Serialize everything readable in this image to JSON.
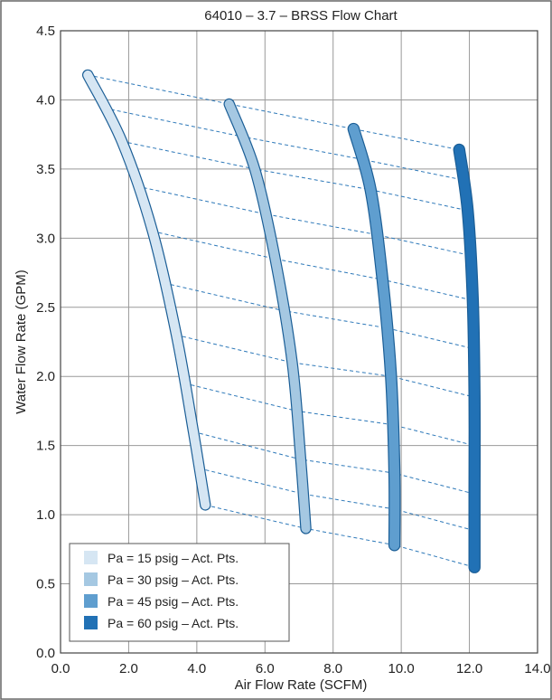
{
  "chart_data": {
    "type": "line",
    "title": "64010 – 3.7 – BRSS Flow Chart",
    "xlabel": "Air Flow Rate (SCFM)",
    "ylabel": "Water Flow Rate (GPM)",
    "xlim": [
      0,
      14
    ],
    "ylim": [
      0,
      4.5
    ],
    "xticks": [
      "0.0",
      "2.0",
      "4.0",
      "6.0",
      "8.0",
      "10.0",
      "12.0",
      "14.0"
    ],
    "yticks": [
      "0.0",
      "0.5",
      "1.0",
      "1.5",
      "2.0",
      "2.5",
      "3.0",
      "3.5",
      "4.0",
      "4.5"
    ],
    "grid": true,
    "legend_position": "bottom-left",
    "series": [
      {
        "name": "Pa = 15 psig – Act. Pts.",
        "color": "#d6e6f3",
        "x": [
          0.8,
          1.8,
          2.7,
          3.4,
          3.9,
          4.25
        ],
        "y": [
          4.18,
          3.7,
          3.05,
          2.3,
          1.6,
          1.07
        ]
      },
      {
        "name": "Pa = 30 psig – Act. Pts.",
        "color": "#a5c8e2",
        "x": [
          4.95,
          5.7,
          6.3,
          6.8,
          7.05,
          7.2
        ],
        "y": [
          3.97,
          3.5,
          2.85,
          2.1,
          1.4,
          0.9
        ]
      },
      {
        "name": "Pa = 45 psig – Act. Pts.",
        "color": "#5f9ecf",
        "x": [
          8.6,
          9.1,
          9.45,
          9.7,
          9.8,
          9.8
        ],
        "y": [
          3.79,
          3.35,
          2.7,
          2.0,
          1.3,
          0.78
        ]
      },
      {
        "name": "Pa = 60 psig – Act. Pts.",
        "color": "#2171b5",
        "x": [
          11.7,
          11.95,
          12.1,
          12.15,
          12.15,
          12.15
        ],
        "y": [
          3.64,
          3.2,
          2.55,
          1.85,
          1.15,
          0.62
        ]
      }
    ]
  }
}
